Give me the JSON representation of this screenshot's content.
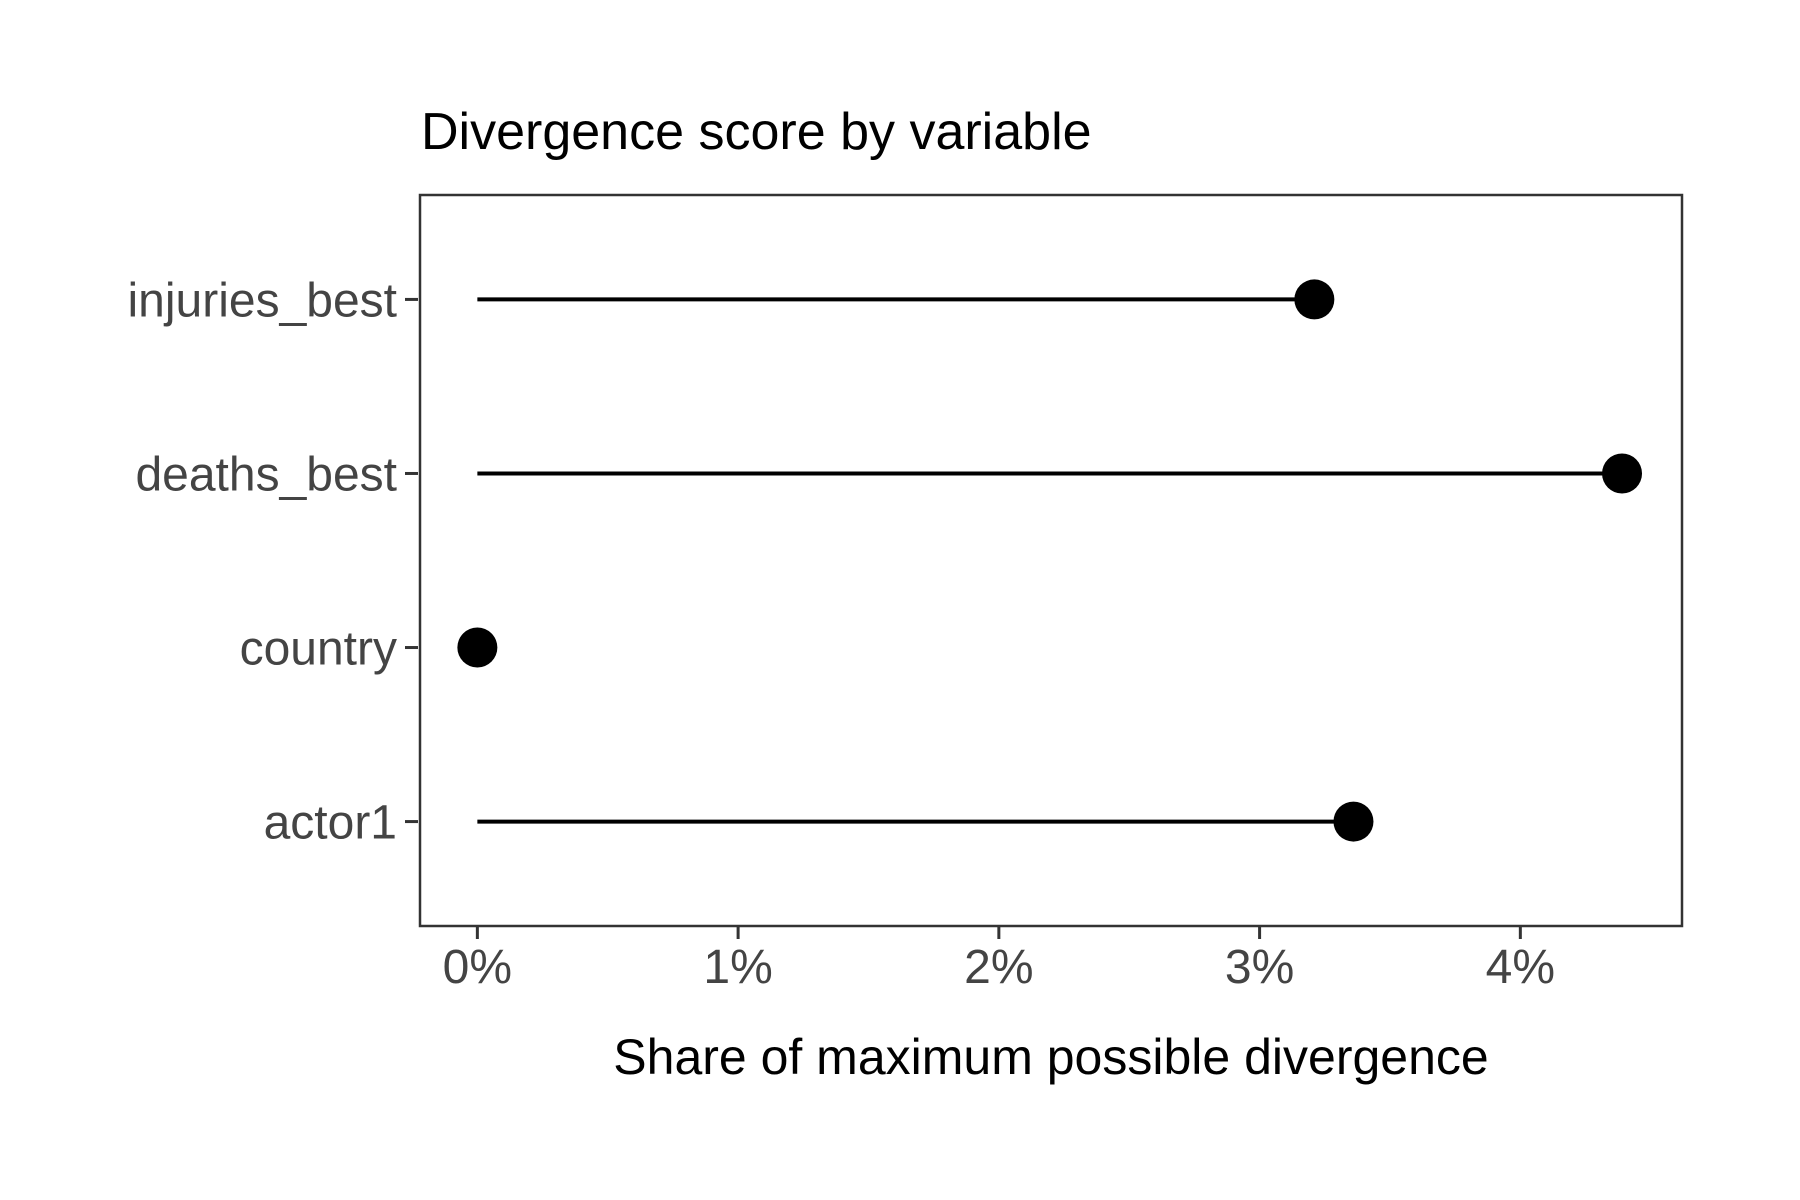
{
  "page": {
    "background_color": "#FFFFFF"
  },
  "chart_data": {
    "type": "lollipop",
    "orientation": "horizontal",
    "title": "Divergence score by variable",
    "xlabel": "Share of maximum possible divergence",
    "ylabel": "",
    "categories": [
      "injuries_best",
      "deaths_best",
      "country",
      "actor1"
    ],
    "series": [
      {
        "name": "share_of_maximum_possible_divergence_pct",
        "values": [
          3.21,
          4.39,
          0.0,
          3.36
        ]
      }
    ],
    "value_unit": "percent",
    "baseline_value": 0,
    "x_ticks": [
      {
        "value": 0,
        "label": "0%"
      },
      {
        "value": 1,
        "label": "1%"
      },
      {
        "value": 2,
        "label": "2%"
      },
      {
        "value": 3,
        "label": "3%"
      },
      {
        "value": 4,
        "label": "4%"
      }
    ],
    "xlim": [
      -0.22,
      4.62
    ],
    "grid": false,
    "legend_position": "none",
    "style": {
      "stem_color": "#000000",
      "point_color": "#000000",
      "panel_border_color": "#333333",
      "axis_tick_color": "#333333",
      "axis_text_color": "#444444",
      "title_color": "#000000",
      "axis_title_color": "#000000",
      "panel_background": "#FFFFFF"
    }
  }
}
